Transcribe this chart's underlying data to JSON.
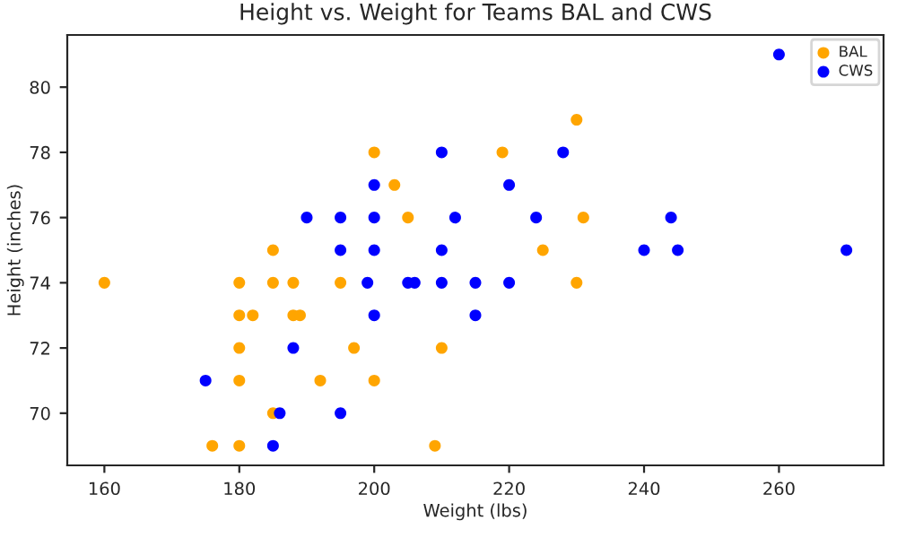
{
  "chart_data": {
    "type": "scatter",
    "title": "Height vs. Weight for Teams BAL and CWS",
    "xlabel": "Weight (lbs)",
    "ylabel": "Height (inches)",
    "xlim": [
      154.5,
      275.5
    ],
    "ylim": [
      68.4,
      81.6
    ],
    "xticks": [
      160,
      180,
      200,
      220,
      240,
      260
    ],
    "yticks": [
      70,
      72,
      74,
      76,
      78,
      80
    ],
    "grid": false,
    "legend": "top right",
    "marker": "circle",
    "series": [
      {
        "name": "BAL",
        "color": "#ffa500",
        "x": [
          200,
          203,
          205,
          185,
          160,
          180,
          185,
          188,
          195,
          180,
          182,
          188,
          189,
          180,
          197,
          210,
          180,
          192,
          200,
          185,
          176,
          180,
          209,
          230,
          219,
          231,
          225,
          230
        ],
        "values": [
          78,
          77,
          76,
          75,
          74,
          74,
          74,
          74,
          74,
          73,
          73,
          73,
          73,
          72,
          72,
          72,
          71,
          71,
          71,
          70,
          69,
          69,
          69,
          79,
          78,
          76,
          75,
          74
        ]
      },
      {
        "name": "CWS",
        "color": "#0000ff",
        "x": [
          210,
          200,
          190,
          195,
          200,
          212,
          195,
          200,
          210,
          199,
          205,
          206,
          210,
          215,
          200,
          215,
          188,
          175,
          186,
          195,
          185,
          260,
          228,
          220,
          224,
          244,
          240,
          245,
          270,
          220
        ],
        "values": [
          78,
          77,
          76,
          76,
          76,
          76,
          75,
          75,
          75,
          74,
          74,
          74,
          74,
          74,
          73,
          73,
          72,
          71,
          70,
          70,
          69,
          81,
          78,
          77,
          76,
          76,
          75,
          75,
          75,
          74
        ]
      }
    ]
  }
}
